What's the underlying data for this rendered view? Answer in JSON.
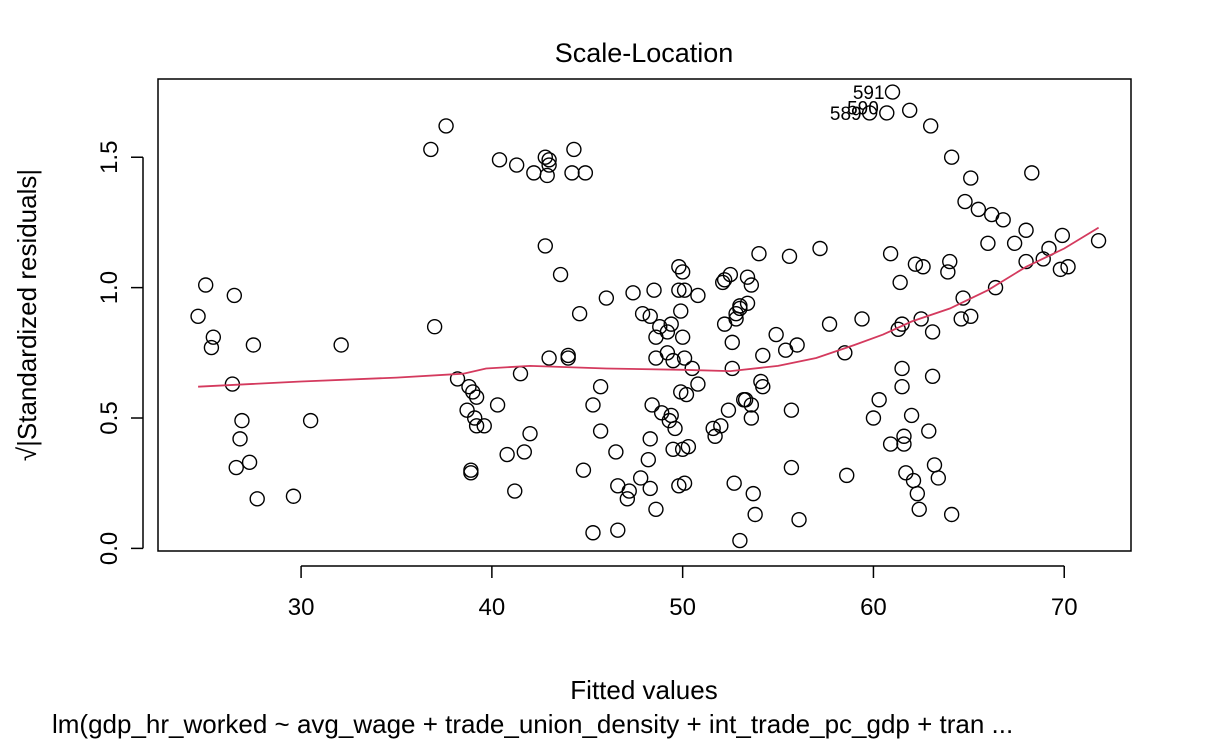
{
  "chart_data": {
    "type": "scatter",
    "title": "Scale-Location",
    "xlabel": "Fitted values",
    "ylabel": "√|Standardized residuals|",
    "subtitle": "lm(gdp_hr_worked ~ avg_wage + trade_union_density + int_trade_pc_gdp + tran ...",
    "xlim": [
      22.5,
      73.5
    ],
    "ylim": [
      -0.01,
      1.8
    ],
    "xticks": [
      "30",
      "40",
      "50",
      "60",
      "70"
    ],
    "yticks": [
      "0.0",
      "0.5",
      "1.0",
      "1.5"
    ],
    "grid": false,
    "point_color": "#000000",
    "smooth_color": "#d43a5e",
    "points": [
      [
        24.6,
        0.89
      ],
      [
        25.0,
        1.01
      ],
      [
        25.3,
        0.77
      ],
      [
        25.4,
        0.81
      ],
      [
        26.4,
        0.63
      ],
      [
        26.6,
        0.31
      ],
      [
        26.5,
        0.97
      ],
      [
        26.8,
        0.42
      ],
      [
        26.9,
        0.49
      ],
      [
        27.3,
        0.33
      ],
      [
        27.5,
        0.78
      ],
      [
        27.7,
        0.19
      ],
      [
        29.6,
        0.2
      ],
      [
        30.5,
        0.49
      ],
      [
        32.1,
        0.78
      ],
      [
        36.8,
        1.53
      ],
      [
        37.0,
        0.85
      ],
      [
        37.6,
        1.62
      ],
      [
        38.2,
        0.65
      ],
      [
        38.7,
        0.53
      ],
      [
        38.8,
        0.62
      ],
      [
        39.0,
        0.6
      ],
      [
        38.9,
        0.3
      ],
      [
        38.9,
        0.29
      ],
      [
        39.2,
        0.58
      ],
      [
        39.1,
        0.5
      ],
      [
        39.2,
        0.47
      ],
      [
        39.6,
        0.47
      ],
      [
        40.3,
        0.55
      ],
      [
        40.4,
        1.49
      ],
      [
        40.8,
        0.36
      ],
      [
        41.2,
        0.22
      ],
      [
        41.3,
        1.47
      ],
      [
        41.5,
        0.67
      ],
      [
        41.7,
        0.37
      ],
      [
        42.0,
        0.44
      ],
      [
        42.2,
        1.44
      ],
      [
        42.8,
        1.16
      ],
      [
        42.8,
        1.5
      ],
      [
        42.9,
        1.43
      ],
      [
        43.0,
        1.49
      ],
      [
        43.0,
        0.73
      ],
      [
        43.0,
        1.47
      ],
      [
        43.6,
        1.05
      ],
      [
        44.0,
        0.73
      ],
      [
        44.0,
        0.74
      ],
      [
        44.2,
        1.44
      ],
      [
        44.3,
        1.53
      ],
      [
        44.6,
        0.9
      ],
      [
        44.9,
        1.44
      ],
      [
        44.8,
        0.3
      ],
      [
        45.3,
        0.06
      ],
      [
        45.3,
        0.55
      ],
      [
        45.7,
        0.62
      ],
      [
        45.7,
        0.45
      ],
      [
        46.0,
        0.96
      ],
      [
        46.5,
        0.37
      ],
      [
        46.6,
        0.24
      ],
      [
        46.6,
        0.07
      ],
      [
        47.1,
        0.19
      ],
      [
        47.2,
        0.22
      ],
      [
        47.4,
        0.98
      ],
      [
        47.8,
        0.27
      ],
      [
        47.9,
        0.9
      ],
      [
        48.2,
        0.34
      ],
      [
        48.3,
        0.42
      ],
      [
        48.3,
        0.89
      ],
      [
        48.3,
        0.23
      ],
      [
        48.4,
        0.55
      ],
      [
        48.5,
        0.99
      ],
      [
        48.6,
        0.81
      ],
      [
        48.6,
        0.73
      ],
      [
        48.6,
        0.15
      ],
      [
        48.8,
        0.85
      ],
      [
        48.9,
        0.52
      ],
      [
        49.2,
        0.83
      ],
      [
        49.2,
        0.75
      ],
      [
        49.3,
        0.49
      ],
      [
        49.4,
        0.86
      ],
      [
        49.4,
        0.51
      ],
      [
        49.5,
        0.38
      ],
      [
        49.5,
        0.72
      ],
      [
        49.6,
        0.46
      ],
      [
        49.8,
        1.08
      ],
      [
        49.8,
        0.99
      ],
      [
        49.9,
        0.91
      ],
      [
        49.8,
        0.24
      ],
      [
        49.9,
        0.6
      ],
      [
        50.0,
        1.06
      ],
      [
        50.0,
        0.81
      ],
      [
        50.0,
        0.38
      ],
      [
        50.1,
        0.99
      ],
      [
        50.1,
        0.25
      ],
      [
        50.1,
        0.73
      ],
      [
        50.2,
        0.59
      ],
      [
        50.3,
        0.39
      ],
      [
        50.5,
        0.69
      ],
      [
        50.8,
        0.97
      ],
      [
        50.8,
        0.63
      ],
      [
        51.6,
        0.46
      ],
      [
        51.7,
        0.43
      ],
      [
        52.0,
        0.47
      ],
      [
        52.1,
        1.02
      ],
      [
        52.2,
        1.03
      ],
      [
        52.2,
        0.86
      ],
      [
        52.4,
        0.53
      ],
      [
        52.5,
        1.05
      ],
      [
        52.6,
        0.79
      ],
      [
        52.6,
        0.69
      ],
      [
        52.7,
        0.25
      ],
      [
        52.8,
        0.88
      ],
      [
        52.8,
        0.9
      ],
      [
        53.0,
        0.93
      ],
      [
        53.0,
        0.92
      ],
      [
        53.0,
        0.03
      ],
      [
        53.2,
        0.57
      ],
      [
        53.3,
        0.57
      ],
      [
        53.4,
        1.04
      ],
      [
        53.4,
        0.94
      ],
      [
        53.6,
        1.01
      ],
      [
        53.6,
        0.55
      ],
      [
        53.6,
        0.5
      ],
      [
        53.7,
        0.21
      ],
      [
        53.8,
        0.13
      ],
      [
        54.0,
        1.13
      ],
      [
        54.1,
        0.64
      ],
      [
        54.2,
        0.62
      ],
      [
        54.2,
        0.74
      ],
      [
        54.9,
        0.82
      ],
      [
        55.4,
        0.76
      ],
      [
        55.6,
        1.12
      ],
      [
        55.7,
        0.53
      ],
      [
        55.7,
        0.31
      ],
      [
        56.0,
        0.78
      ],
      [
        56.1,
        0.11
      ],
      [
        57.2,
        1.15
      ],
      [
        57.7,
        0.86
      ],
      [
        58.5,
        0.75
      ],
      [
        58.6,
        0.28
      ],
      [
        59.4,
        0.88
      ],
      [
        59.8,
        1.67
      ],
      [
        60.0,
        0.5
      ],
      [
        60.3,
        0.57
      ],
      [
        60.7,
        1.67
      ],
      [
        60.9,
        0.4
      ],
      [
        60.9,
        1.13
      ],
      [
        61.0,
        1.75
      ],
      [
        61.3,
        0.84
      ],
      [
        61.4,
        1.02
      ],
      [
        61.5,
        0.86
      ],
      [
        61.5,
        0.62
      ],
      [
        61.5,
        0.69
      ],
      [
        61.6,
        0.43
      ],
      [
        61.6,
        0.4
      ],
      [
        61.7,
        0.29
      ],
      [
        61.9,
        1.68
      ],
      [
        62.0,
        0.51
      ],
      [
        62.1,
        0.26
      ],
      [
        62.3,
        0.21
      ],
      [
        62.2,
        1.09
      ],
      [
        62.4,
        0.15
      ],
      [
        62.5,
        0.88
      ],
      [
        62.6,
        1.08
      ],
      [
        62.9,
        0.45
      ],
      [
        63.0,
        1.62
      ],
      [
        63.1,
        0.66
      ],
      [
        63.1,
        0.83
      ],
      [
        63.2,
        0.32
      ],
      [
        63.4,
        0.27
      ],
      [
        63.9,
        1.06
      ],
      [
        64.0,
        1.1
      ],
      [
        64.1,
        0.13
      ],
      [
        64.1,
        1.5
      ],
      [
        64.6,
        0.88
      ],
      [
        64.7,
        0.96
      ],
      [
        64.8,
        1.33
      ],
      [
        65.1,
        0.89
      ],
      [
        65.1,
        1.42
      ],
      [
        65.5,
        1.3
      ],
      [
        66.0,
        1.17
      ],
      [
        66.2,
        1.28
      ],
      [
        66.4,
        1.0
      ],
      [
        66.8,
        1.26
      ],
      [
        67.4,
        1.17
      ],
      [
        68.0,
        1.1
      ],
      [
        68.0,
        1.22
      ],
      [
        68.3,
        1.44
      ],
      [
        68.9,
        1.11
      ],
      [
        69.2,
        1.15
      ],
      [
        69.8,
        1.07
      ],
      [
        69.9,
        1.2
      ],
      [
        70.2,
        1.08
      ],
      [
        71.8,
        1.18
      ]
    ],
    "annotations": [
      {
        "label": "591",
        "x": 61.0,
        "y": 1.75
      },
      {
        "label": "590",
        "x": 60.7,
        "y": 1.69
      },
      {
        "label": "589",
        "x": 59.8,
        "y": 1.67
      }
    ],
    "smooth": [
      [
        24.6,
        0.62
      ],
      [
        30,
        0.64
      ],
      [
        35,
        0.655
      ],
      [
        38.5,
        0.67
      ],
      [
        39.7,
        0.69
      ],
      [
        42,
        0.7
      ],
      [
        46,
        0.69
      ],
      [
        50,
        0.685
      ],
      [
        52.5,
        0.68
      ],
      [
        55,
        0.7
      ],
      [
        57,
        0.73
      ],
      [
        59,
        0.78
      ],
      [
        60.5,
        0.82
      ],
      [
        62,
        0.87
      ],
      [
        64,
        0.92
      ],
      [
        66,
        0.99
      ],
      [
        68,
        1.08
      ],
      [
        70,
        1.15
      ],
      [
        71.8,
        1.23
      ]
    ]
  }
}
